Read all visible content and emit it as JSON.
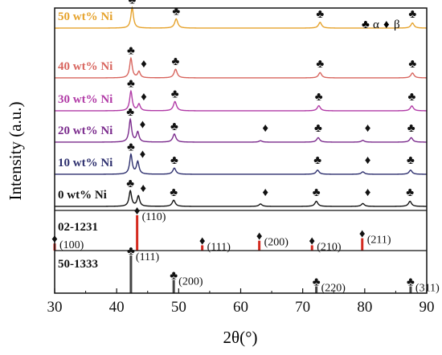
{
  "chart_data": {
    "type": "line",
    "xlabel": "2θ(°)",
    "ylabel": "Intensity (a.u.)",
    "xlim": [
      30,
      90
    ],
    "xticks": [
      "30",
      "40",
      "50",
      "60",
      "70",
      "80",
      "90"
    ],
    "legend": {
      "alpha_symbol": "♣",
      "alpha_text": "α",
      "beta_symbol": "♦",
      "beta_text": "β"
    },
    "series": [
      {
        "name": "50 wt% Ni",
        "color": "#e6a22b",
        "peaks": [
          {
            "x": 42.5,
            "h": 1.0,
            "w": 0.25,
            "mark": "alpha"
          },
          {
            "x": 49.6,
            "h": 0.45,
            "w": 0.3,
            "mark": "alpha"
          },
          {
            "x": 72.8,
            "h": 0.28,
            "w": 0.3,
            "mark": "alpha"
          },
          {
            "x": 87.7,
            "h": 0.25,
            "w": 0.3,
            "mark": "alpha"
          }
        ]
      },
      {
        "name": "40 wt% Ni",
        "color": "#d8655e",
        "peaks": [
          {
            "x": 42.3,
            "h": 0.95,
            "w": 0.25,
            "mark": "alpha"
          },
          {
            "x": 43.6,
            "h": 0.3,
            "w": 0.25,
            "mark": "beta"
          },
          {
            "x": 49.5,
            "h": 0.42,
            "w": 0.3,
            "mark": "alpha"
          },
          {
            "x": 72.8,
            "h": 0.26,
            "w": 0.3,
            "mark": "alpha"
          },
          {
            "x": 87.7,
            "h": 0.24,
            "w": 0.3,
            "mark": "alpha"
          }
        ]
      },
      {
        "name": "30 wt% Ni",
        "color": "#b13aa6",
        "peaks": [
          {
            "x": 42.3,
            "h": 0.95,
            "w": 0.25,
            "mark": "alpha"
          },
          {
            "x": 43.6,
            "h": 0.32,
            "w": 0.25,
            "mark": "beta"
          },
          {
            "x": 49.4,
            "h": 0.45,
            "w": 0.3,
            "mark": "alpha"
          },
          {
            "x": 72.6,
            "h": 0.25,
            "w": 0.3,
            "mark": "alpha"
          },
          {
            "x": 87.6,
            "h": 0.24,
            "w": 0.3,
            "mark": "alpha"
          }
        ]
      },
      {
        "name": "20 wt% Ni",
        "color": "#7a2a8c",
        "peaks": [
          {
            "x": 42.2,
            "h": 1.25,
            "w": 0.25,
            "mark": "alpha"
          },
          {
            "x": 43.4,
            "h": 0.55,
            "w": 0.25,
            "mark": "beta"
          },
          {
            "x": 49.3,
            "h": 0.45,
            "w": 0.3,
            "mark": "alpha"
          },
          {
            "x": 63.2,
            "h": 0.08,
            "w": 0.3,
            "mark": "beta"
          },
          {
            "x": 72.5,
            "h": 0.25,
            "w": 0.3,
            "mark": "alpha"
          },
          {
            "x": 79.7,
            "h": 0.1,
            "w": 0.3,
            "mark": "beta"
          },
          {
            "x": 87.5,
            "h": 0.25,
            "w": 0.3,
            "mark": "alpha"
          }
        ]
      },
      {
        "name": "10 wt% Ni",
        "color": "#2d2f6e",
        "peaks": [
          {
            "x": 42.3,
            "h": 0.95,
            "w": 0.25,
            "mark": "alpha"
          },
          {
            "x": 43.4,
            "h": 0.6,
            "w": 0.25,
            "mark": "beta"
          },
          {
            "x": 49.3,
            "h": 0.3,
            "w": 0.3,
            "mark": "alpha"
          },
          {
            "x": 72.4,
            "h": 0.2,
            "w": 0.3,
            "mark": "alpha"
          },
          {
            "x": 79.7,
            "h": 0.12,
            "w": 0.3,
            "mark": "beta"
          },
          {
            "x": 87.4,
            "h": 0.2,
            "w": 0.3,
            "mark": "alpha"
          }
        ]
      },
      {
        "name": "0 wt% Ni",
        "color": "#111111",
        "peaks": [
          {
            "x": 42.2,
            "h": 0.75,
            "w": 0.25,
            "mark": "alpha"
          },
          {
            "x": 43.5,
            "h": 0.5,
            "w": 0.25,
            "mark": "beta"
          },
          {
            "x": 49.2,
            "h": 0.3,
            "w": 0.3,
            "mark": "alpha"
          },
          {
            "x": 63.2,
            "h": 0.12,
            "w": 0.3,
            "mark": "beta"
          },
          {
            "x": 72.2,
            "h": 0.25,
            "w": 0.3,
            "mark": "alpha"
          },
          {
            "x": 79.7,
            "h": 0.14,
            "w": 0.3,
            "mark": "beta"
          },
          {
            "x": 87.3,
            "h": 0.25,
            "w": 0.3,
            "mark": "alpha"
          }
        ]
      }
    ],
    "references": [
      {
        "card": "02-1231",
        "color": "#d42a1f",
        "symbol": "♦",
        "lines": [
          {
            "x": 30.0,
            "i": 0.2,
            "label": "(100)"
          },
          {
            "x": 43.3,
            "i": 1.0,
            "label": "(110)"
          },
          {
            "x": 53.8,
            "i": 0.15,
            "label": "(111)"
          },
          {
            "x": 63.0,
            "i": 0.28,
            "label": "(200)"
          },
          {
            "x": 71.5,
            "i": 0.15,
            "label": "(210)"
          },
          {
            "x": 79.6,
            "i": 0.35,
            "label": "(211)"
          }
        ]
      },
      {
        "card": "50-1333",
        "color": "#444444",
        "symbol": "♣",
        "lines": [
          {
            "x": 42.3,
            "i": 1.0,
            "label": "(111)"
          },
          {
            "x": 49.2,
            "i": 0.35,
            "label": "(200)"
          },
          {
            "x": 72.2,
            "i": 0.18,
            "label": "(220)"
          },
          {
            "x": 87.4,
            "i": 0.18,
            "label": "(311)"
          }
        ]
      }
    ]
  }
}
